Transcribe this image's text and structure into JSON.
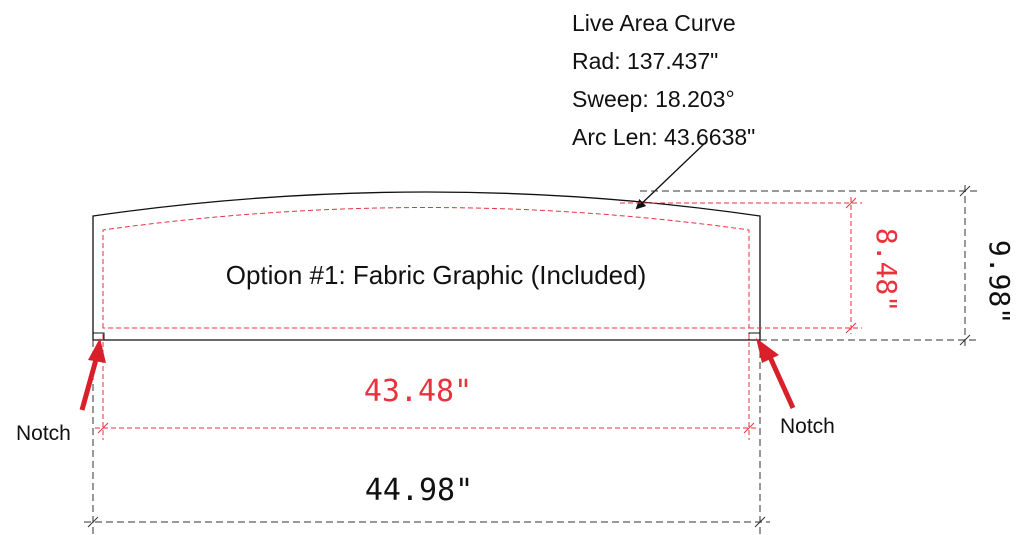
{
  "callout": {
    "title": "Live Area Curve",
    "radius": "Rad: 137.437\"",
    "sweep": "Sweep: 18.203°",
    "arc_length": "Arc Len: 43.6638\""
  },
  "panel": {
    "label": "Option #1: Fabric Graphic (Included)"
  },
  "dimensions": {
    "live_width": "43.48\"",
    "overall_width": "44.98\"",
    "live_height": "8.48\"",
    "overall_height": "9.98\""
  },
  "notches": {
    "left_label": "Notch",
    "right_label": "Notch"
  },
  "colors": {
    "live_area": "#e8323c",
    "outline": "#111111",
    "arrow": "#d9202a"
  }
}
